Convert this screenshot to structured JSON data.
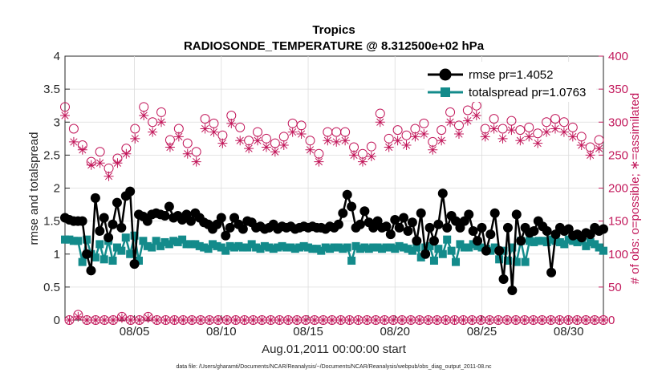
{
  "chart_data": {
    "type": "line",
    "title": "Tropics",
    "subtitle": "RADIOSONDE_TEMPERATURE @ 8.312500e+02 hPa",
    "xlabel": "Aug.01,2011 00:00:00 start",
    "ylabel": "rmse and totalspread",
    "ylabel_right": "# of obs: o=possible; ∗=assimilated",
    "footnote": "data file: /Users/gharamti/Documents/NCAR/Reanalysis/~/Documents/NCAR/Reanalysis/webpub/obs_diag_output_2011-08.nc",
    "x_range": [
      1,
      32
    ],
    "ylim": [
      0,
      4
    ],
    "ylim_right": [
      0,
      400
    ],
    "x_ticks": [
      5,
      10,
      15,
      20,
      25,
      30
    ],
    "x_tick_labels": [
      "08/05",
      "08/10",
      "08/15",
      "08/20",
      "08/25",
      "08/30"
    ],
    "y_ticks": [
      "0",
      "0.5",
      "1",
      "1.5",
      "2",
      "2.5",
      "3",
      "3.5",
      "4"
    ],
    "y_ticks_right": [
      "0",
      "50",
      "100",
      "150",
      "200",
      "250",
      "300",
      "350",
      "400"
    ],
    "colors": {
      "rmse": "#000000",
      "spread": "#138b8b",
      "obs": "#c2185b"
    },
    "legend": [
      {
        "name": "rmse pr=1.4052",
        "key": "rmse"
      },
      {
        "name": "totalspread pr=1.0763",
        "key": "spread"
      }
    ],
    "series": [
      {
        "name": "rmse",
        "axis": "left",
        "values": [
          1.55,
          1.52,
          1.5,
          1.5,
          1.5,
          1.0,
          0.75,
          1.85,
          1.35,
          1.55,
          1.25,
          1.45,
          1.78,
          1.4,
          1.88,
          1.95,
          0.85,
          1.6,
          1.57,
          1.5,
          1.6,
          1.62,
          1.6,
          1.58,
          1.72,
          1.55,
          1.58,
          1.52,
          1.6,
          1.5,
          1.62,
          1.55,
          1.48,
          1.45,
          1.38,
          1.45,
          1.55,
          1.28,
          1.4,
          1.55,
          1.45,
          1.38,
          1.5,
          1.48,
          1.4,
          1.42,
          1.38,
          1.4,
          1.45,
          1.38,
          1.42,
          1.4,
          1.42,
          1.38,
          1.4,
          1.42,
          1.4,
          1.42,
          1.4,
          1.4,
          1.38,
          1.42,
          1.4,
          1.45,
          1.62,
          1.9,
          1.72,
          1.4,
          1.45,
          1.65,
          1.48,
          1.4,
          1.5,
          1.4,
          1.42,
          1.3,
          1.52,
          1.4,
          1.55,
          1.35,
          1.48,
          1.2,
          1.62,
          1.0,
          1.4,
          1.2,
          1.45,
          1.92,
          1.4,
          1.58,
          1.5,
          1.4,
          1.5,
          1.6,
          1.35,
          1.2,
          1.4,
          1.05,
          1.3,
          1.62,
          1.05,
          0.62,
          1.4,
          0.45,
          1.6,
          1.2,
          1.4,
          1.32,
          1.35,
          1.5,
          1.42,
          1.35,
          0.72,
          1.3,
          1.4,
          1.35,
          1.38,
          1.28,
          1.3,
          1.25,
          1.32,
          1.3,
          1.4,
          1.35,
          1.38
        ]
      },
      {
        "name": "totalspread",
        "axis": "left",
        "values": [
          1.22,
          1.22,
          1.2,
          1.2,
          0.88,
          1.22,
          1.0,
          0.95,
          1.15,
          0.92,
          1.2,
          0.9,
          1.1,
          1.05,
          1.25,
          1.0,
          1.28,
          0.9,
          1.2,
          1.12,
          1.1,
          1.2,
          1.12,
          1.18,
          1.15,
          1.2,
          1.18,
          1.22,
          1.15,
          1.15,
          1.15,
          1.12,
          1.1,
          1.08,
          1.15,
          1.12,
          1.1,
          1.05,
          1.12,
          1.1,
          1.12,
          1.1,
          1.1,
          1.15,
          1.1,
          1.08,
          1.12,
          1.1,
          1.08,
          1.1,
          1.12,
          1.1,
          1.1,
          1.08,
          1.1,
          1.12,
          1.1,
          1.08,
          1.08,
          1.05,
          1.1,
          1.08,
          1.1,
          1.1,
          1.08,
          1.1,
          0.9,
          1.12,
          1.08,
          1.1,
          1.08,
          1.1,
          1.1,
          1.08,
          1.1,
          1.1,
          1.08,
          1.12,
          1.1,
          1.08,
          1.05,
          1.1,
          0.95,
          1.1,
          1.12,
          0.9,
          1.08,
          1.0,
          1.22,
          1.05,
          0.88,
          1.15,
          1.1,
          1.1,
          1.15,
          1.12,
          1.1,
          1.08,
          1.05,
          1.1,
          0.92,
          1.05,
          0.9,
          1.1,
          0.88,
          1.2,
          0.88,
          1.2,
          1.18,
          1.2,
          1.2,
          1.18,
          1.22,
          1.2,
          1.18,
          1.15,
          1.22,
          1.2,
          1.18,
          1.2,
          1.12,
          1.18,
          1.15,
          1.1,
          1.05
        ]
      },
      {
        "name": "obs_possible",
        "axis": "right",
        "values": [
          323,
          0,
          290,
          8,
          265,
          0,
          240,
          0,
          255,
          0,
          230,
          0,
          245,
          5,
          260,
          0,
          290,
          0,
          323,
          5,
          300,
          0,
          315,
          0,
          273,
          0,
          290,
          0,
          268,
          0,
          255,
          0,
          305,
          0,
          298,
          0,
          280,
          0,
          310,
          0,
          292,
          0,
          272,
          0,
          285,
          0,
          275,
          0,
          268,
          0,
          278,
          0,
          298,
          0,
          295,
          0,
          272,
          0,
          252,
          0,
          285,
          0,
          285,
          0,
          285,
          0,
          262,
          0,
          252,
          0,
          263,
          0,
          313,
          0,
          275,
          0,
          288,
          0,
          280,
          0,
          290,
          0,
          298,
          0,
          270,
          0,
          288,
          0,
          315,
          0,
          295,
          0,
          318,
          0,
          325,
          0,
          290,
          0,
          305,
          0,
          290,
          0,
          302,
          0,
          288,
          0,
          292,
          0,
          283,
          0,
          300,
          0,
          305,
          0,
          300,
          0,
          292,
          0,
          278,
          0,
          262,
          0,
          273,
          0
        ]
      },
      {
        "name": "obs_assimilated",
        "axis": "right",
        "values": [
          310,
          0,
          270,
          5,
          258,
          0,
          235,
          0,
          238,
          0,
          218,
          0,
          238,
          3,
          252,
          0,
          275,
          0,
          310,
          3,
          285,
          0,
          300,
          0,
          262,
          0,
          278,
          0,
          252,
          0,
          240,
          0,
          290,
          0,
          285,
          0,
          268,
          0,
          298,
          0,
          272,
          0,
          260,
          0,
          272,
          0,
          262,
          0,
          255,
          0,
          265,
          0,
          285,
          0,
          282,
          0,
          258,
          0,
          240,
          0,
          272,
          0,
          270,
          0,
          272,
          0,
          250,
          0,
          240,
          0,
          248,
          0,
          300,
          0,
          262,
          0,
          272,
          0,
          265,
          0,
          278,
          0,
          282,
          0,
          258,
          0,
          272,
          0,
          300,
          0,
          282,
          0,
          302,
          0,
          310,
          0,
          278,
          0,
          290,
          0,
          275,
          0,
          288,
          0,
          272,
          0,
          278,
          0,
          268,
          0,
          285,
          0,
          290,
          0,
          285,
          0,
          278,
          0,
          265,
          0,
          250,
          0,
          260,
          0
        ]
      }
    ]
  }
}
